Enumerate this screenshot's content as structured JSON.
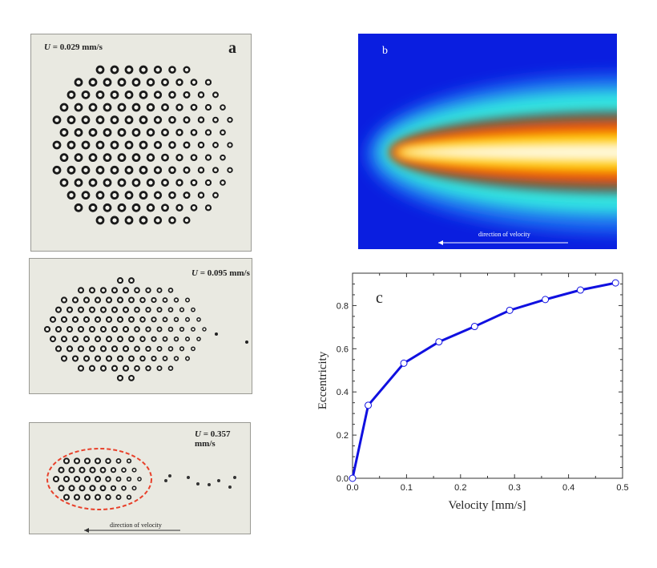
{
  "panel_a": {
    "top": {
      "label_var": "U",
      "label_value": "= 0.029 mm/s",
      "letter": "a"
    },
    "middle": {
      "label_var": "U",
      "label_value": "= 0.095 mm/s"
    },
    "bottom": {
      "label_var": "U",
      "label_value": "= 0.357 mm/s",
      "caption": "direction of velocity",
      "ellipse_color": "#e8402a"
    }
  },
  "panel_b": {
    "letter": "b",
    "caption": "direction of velocity",
    "colormap": [
      "#0a1ee0",
      "#2fe8e0",
      "#6a5a48",
      "#f06010",
      "#ffd000",
      "#fffbe0"
    ]
  },
  "chart_data": {
    "type": "line",
    "letter": "c",
    "xlabel": "Velocity [mm/s]",
    "ylabel": "Eccentricity",
    "xlim": [
      0,
      0.5
    ],
    "ylim": [
      0,
      0.95
    ],
    "xticks": [
      "0.0",
      "0.1",
      "0.2",
      "0.3",
      "0.4",
      "0.5"
    ],
    "yticks": [
      "0.0",
      "0.2",
      "0.4",
      "0.6",
      "0.8"
    ],
    "grid": false,
    "color": "#1010e0",
    "marker": "open-circle",
    "x": [
      0,
      0.029,
      0.095,
      0.16,
      0.226,
      0.291,
      0.357,
      0.422,
      0.487
    ],
    "y": [
      0,
      0.338,
      0.533,
      0.632,
      0.703,
      0.778,
      0.828,
      0.872,
      0.905
    ]
  }
}
